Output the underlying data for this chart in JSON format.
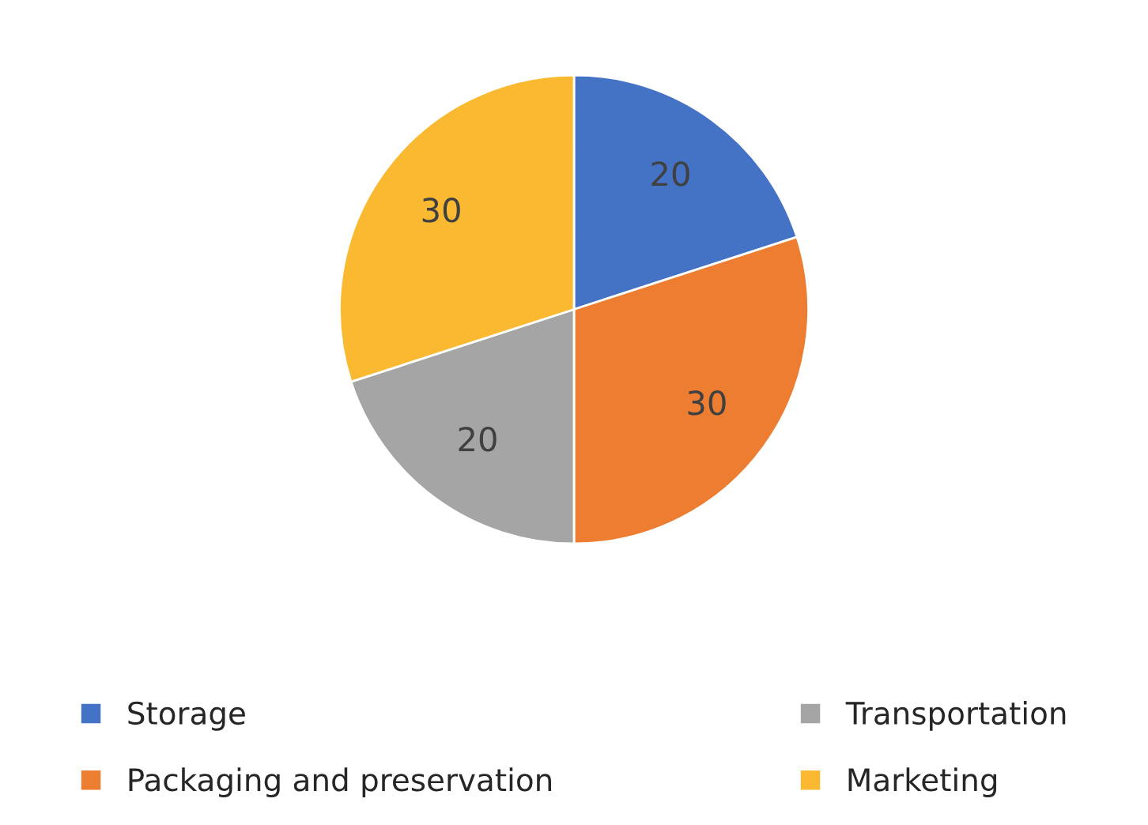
{
  "chart_data": {
    "type": "pie",
    "categories": [
      "Storage",
      "Packaging and preservation",
      "Transportation",
      "Marketing"
    ],
    "values": [
      20,
      30,
      20,
      30
    ],
    "colors": [
      "#4472c4",
      "#ed7d31",
      "#a5a5a5",
      "#fbb931"
    ],
    "data_labels": true,
    "legend": "bottom"
  }
}
